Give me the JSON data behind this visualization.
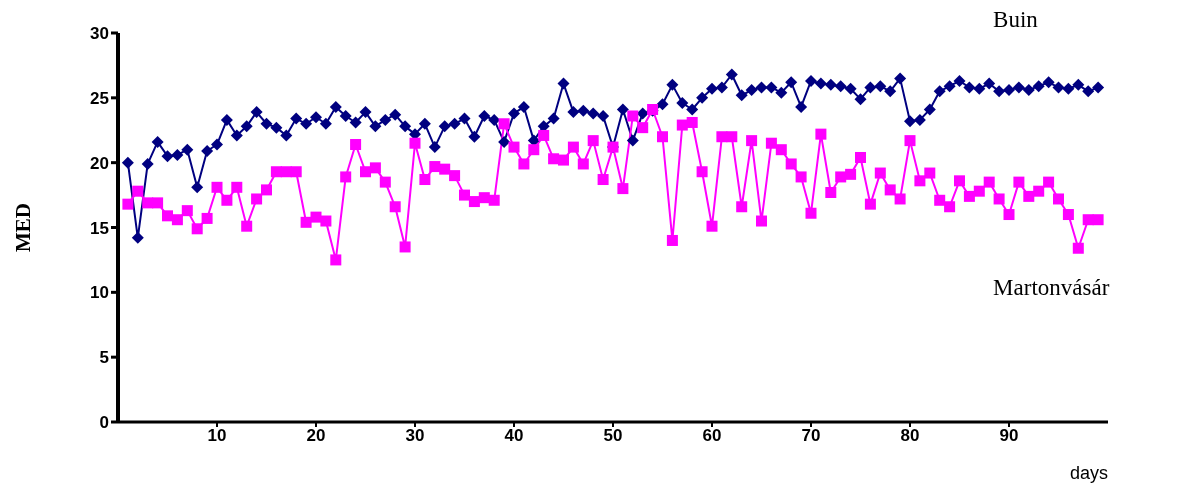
{
  "chart_data": {
    "type": "line",
    "xlabel": "days",
    "ylabel": "MED",
    "xlim": [
      0,
      100
    ],
    "xticks": [
      10,
      20,
      30,
      40,
      50,
      60,
      70,
      80,
      90
    ],
    "ylim": [
      0,
      30
    ],
    "yticks": [
      0,
      5,
      10,
      15,
      20,
      25,
      30
    ],
    "line_style": "solid",
    "x": [
      1,
      2,
      3,
      4,
      5,
      6,
      7,
      8,
      9,
      10,
      11,
      12,
      13,
      14,
      15,
      16,
      17,
      18,
      19,
      20,
      21,
      22,
      23,
      24,
      25,
      26,
      27,
      28,
      29,
      30,
      31,
      32,
      33,
      34,
      35,
      36,
      37,
      38,
      39,
      40,
      41,
      42,
      43,
      44,
      45,
      46,
      47,
      48,
      49,
      50,
      51,
      52,
      53,
      54,
      55,
      56,
      57,
      58,
      59,
      60,
      61,
      62,
      63,
      64,
      65,
      66,
      67,
      68,
      69,
      70,
      71,
      72,
      73,
      74,
      75,
      76,
      77,
      78,
      79,
      80,
      81,
      82,
      83,
      84,
      85,
      86,
      87,
      88,
      89,
      90,
      91,
      92,
      93,
      94,
      95,
      96,
      97,
      98,
      99
    ],
    "series": [
      {
        "name": "Buin",
        "color": "#000080",
        "marker": "diamond",
        "values": [
          20.0,
          14.2,
          19.9,
          21.6,
          20.5,
          20.6,
          21.0,
          18.1,
          20.9,
          21.4,
          23.3,
          22.1,
          22.8,
          23.9,
          23.0,
          22.7,
          22.1,
          23.4,
          23.0,
          23.5,
          23.0,
          24.3,
          23.6,
          23.1,
          23.9,
          22.8,
          23.3,
          23.7,
          22.8,
          22.2,
          23.0,
          21.2,
          22.8,
          23.0,
          23.4,
          22.0,
          23.6,
          23.3,
          21.6,
          23.8,
          24.3,
          21.7,
          22.8,
          23.4,
          26.1,
          23.9,
          24.0,
          23.8,
          23.6,
          21.2,
          24.1,
          21.7,
          23.8,
          24.0,
          24.5,
          26.0,
          24.6,
          24.1,
          25.0,
          25.7,
          25.8,
          26.8,
          25.2,
          25.6,
          25.8,
          25.8,
          25.4,
          26.2,
          24.3,
          26.3,
          26.1,
          26.0,
          25.9,
          25.7,
          24.9,
          25.8,
          25.9,
          25.5,
          26.5,
          23.2,
          23.3,
          24.1,
          25.5,
          25.9,
          26.3,
          25.8,
          25.7,
          26.1,
          25.5,
          25.6,
          25.8,
          25.6,
          25.9,
          26.2,
          25.8,
          25.7,
          26.0,
          25.5,
          25.8
        ]
      },
      {
        "name": "Martonvásár",
        "color": "#ff00ff",
        "marker": "square",
        "values": [
          16.8,
          17.8,
          16.9,
          16.9,
          15.9,
          15.6,
          16.3,
          14.9,
          15.7,
          18.1,
          17.1,
          18.1,
          15.1,
          17.2,
          17.9,
          19.3,
          19.3,
          19.3,
          15.4,
          15.8,
          15.5,
          12.5,
          18.9,
          21.4,
          19.3,
          19.6,
          18.5,
          16.6,
          13.5,
          21.5,
          18.7,
          19.7,
          19.5,
          19.0,
          17.5,
          17.0,
          17.3,
          17.1,
          23.0,
          21.2,
          19.9,
          21.0,
          22.1,
          20.3,
          20.2,
          21.2,
          19.9,
          21.7,
          18.7,
          21.2,
          18.0,
          23.6,
          22.7,
          24.1,
          22.0,
          14.0,
          22.9,
          23.1,
          19.3,
          15.1,
          22.0,
          22.0,
          16.6,
          21.7,
          15.5,
          21.5,
          21.0,
          19.9,
          18.9,
          16.1,
          22.2,
          17.7,
          18.9,
          19.1,
          20.4,
          16.8,
          19.2,
          17.9,
          17.2,
          21.7,
          18.6,
          19.2,
          17.1,
          16.6,
          18.6,
          17.4,
          17.8,
          18.5,
          17.2,
          16.0,
          18.5,
          17.4,
          17.8,
          18.5,
          17.2,
          16.0,
          13.4,
          15.6,
          15.6
        ]
      }
    ]
  }
}
